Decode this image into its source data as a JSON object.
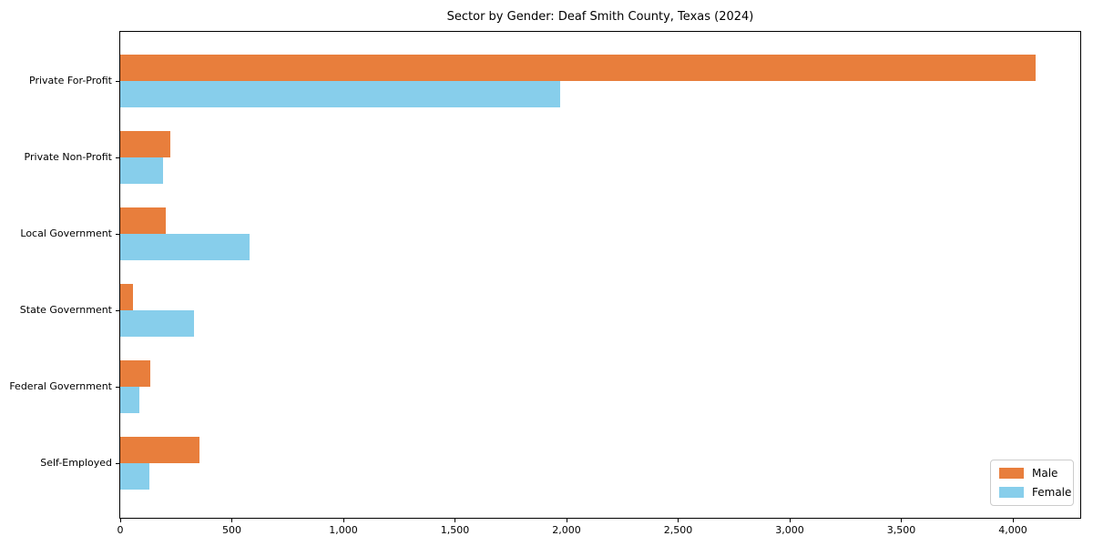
{
  "chart_data": {
    "type": "bar",
    "orientation": "horizontal",
    "title": "Sector by Gender: Deaf Smith County, Texas (2024)",
    "categories": [
      "Private For-Profit",
      "Private Non-Profit",
      "Local Government",
      "State Government",
      "Federal Government",
      "Self-Employed"
    ],
    "series": [
      {
        "name": "Male",
        "color": "#e87e3c",
        "values": [
          4100,
          225,
          205,
          55,
          135,
          355
        ]
      },
      {
        "name": "Female",
        "color": "#87ceeb",
        "values": [
          1970,
          190,
          580,
          330,
          85,
          130
        ]
      }
    ],
    "xlabel": "",
    "ylabel": "",
    "xlim": [
      0,
      4310
    ],
    "x_ticks": [
      {
        "value": 0,
        "label": "0"
      },
      {
        "value": 500,
        "label": "500"
      },
      {
        "value": 1000,
        "label": "1,000"
      },
      {
        "value": 1500,
        "label": "1,500"
      },
      {
        "value": 2000,
        "label": "2,000"
      },
      {
        "value": 2500,
        "label": "2,500"
      },
      {
        "value": 3000,
        "label": "3,000"
      },
      {
        "value": 3500,
        "label": "3,500"
      },
      {
        "value": 4000,
        "label": "4,000"
      }
    ],
    "grid": false,
    "legend": {
      "position": "lower-right",
      "items": [
        "Male",
        "Female"
      ]
    },
    "axis_color": "#000000",
    "text_color": "#000000"
  }
}
